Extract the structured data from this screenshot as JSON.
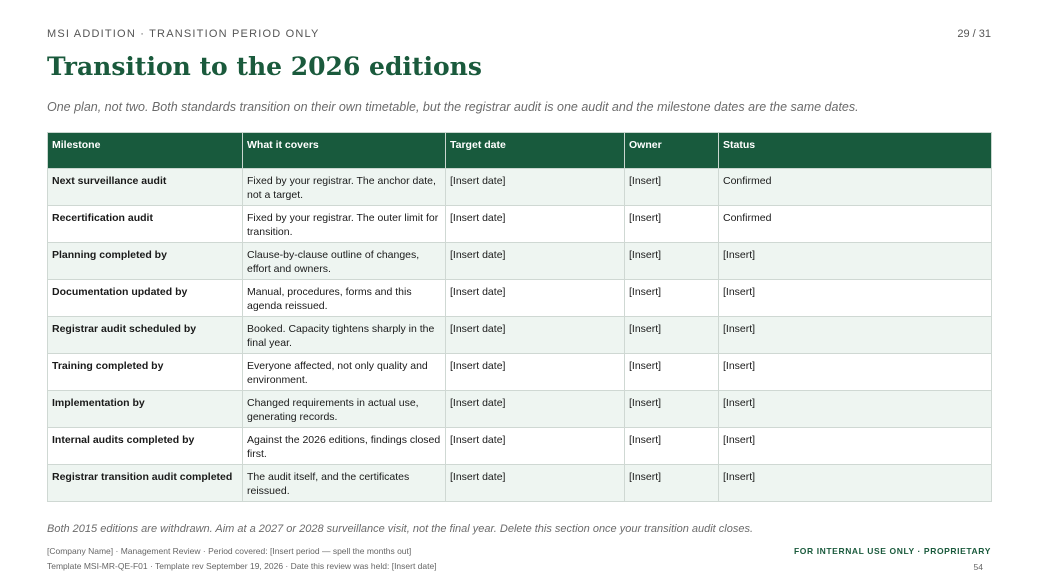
{
  "header": {
    "eyebrow": "MSI ADDITION  ·  TRANSITION PERIOD ONLY",
    "page_counter": "29 / 31",
    "title": "Transition to the 2026 editions",
    "subtitle": "One plan, not two. Both standards transition on their own timetable, but the registrar audit is one audit and the milestone dates are the same dates."
  },
  "table": {
    "columns": [
      "Milestone",
      "What it covers",
      "Target date",
      "Owner",
      "Status"
    ],
    "rows": [
      {
        "milestone": "Next surveillance audit",
        "covers": "Fixed by your registrar. The anchor date, not a target.",
        "target": "[Insert date]",
        "owner": "[Insert]",
        "status": "Confirmed"
      },
      {
        "milestone": "Recertification audit",
        "covers": "Fixed by your registrar. The outer limit for transition.",
        "target": "[Insert date]",
        "owner": "[Insert]",
        "status": "Confirmed"
      },
      {
        "milestone": "Planning completed by",
        "covers": "Clause-by-clause outline of changes, effort and owners.",
        "target": "[Insert date]",
        "owner": "[Insert]",
        "status": "[Insert]"
      },
      {
        "milestone": "Documentation updated by",
        "covers": "Manual, procedures, forms and this agenda reissued.",
        "target": "[Insert date]",
        "owner": "[Insert]",
        "status": "[Insert]"
      },
      {
        "milestone": "Registrar audit scheduled by",
        "covers": "Booked. Capacity tightens sharply in the final year.",
        "target": "[Insert date]",
        "owner": "[Insert]",
        "status": "[Insert]"
      },
      {
        "milestone": "Training completed by",
        "covers": "Everyone affected, not only quality and environment.",
        "target": "[Insert date]",
        "owner": "[Insert]",
        "status": "[Insert]"
      },
      {
        "milestone": "Implementation by",
        "covers": "Changed requirements in actual use, generating records.",
        "target": "[Insert date]",
        "owner": "[Insert]",
        "status": "[Insert]"
      },
      {
        "milestone": "Internal audits completed by",
        "covers": "Against the 2026 editions, findings closed first.",
        "target": "[Insert date]",
        "owner": "[Insert]",
        "status": "[Insert]"
      },
      {
        "milestone": "Registrar transition audit completed",
        "covers": "The audit itself, and the certificates reissued.",
        "target": "[Insert date]",
        "owner": "[Insert]",
        "status": "[Insert]"
      }
    ]
  },
  "footnote": "Both 2015 editions are withdrawn. Aim at a 2027 or 2028 surveillance visit, not the final year. Delete this section once your transition audit closes.",
  "footer": {
    "line1": "[Company Name]  ·  Management Review  ·  Period covered: [Insert period — spell the months out]",
    "line2": "Template MSI-MR-QE-F01  ·  Template rev September 19, 2026  ·  Date this review was held: [Insert date]",
    "classification": "FOR INTERNAL USE ONLY  ·  PROPRIETARY",
    "page_number": "54"
  },
  "colors": {
    "accent": "#1a5a3c",
    "header_fill": "#185a3d",
    "alt_row": "#eef5f1"
  }
}
